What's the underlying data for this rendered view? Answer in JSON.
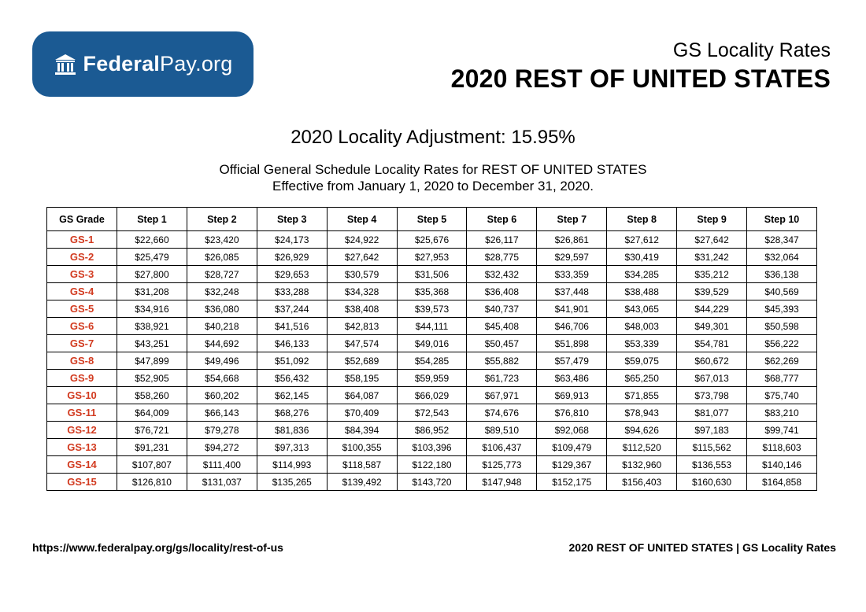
{
  "logo": {
    "brand_bold": "Federal",
    "brand_rest": "Pay.org",
    "icon": "building-columns-icon"
  },
  "header": {
    "subtitle": "GS Locality Rates",
    "title": "2020 REST OF UNITED STATES"
  },
  "adjustment": "2020 Locality Adjustment: 15.95%",
  "description": {
    "line1": "Official General Schedule Locality Rates for REST OF UNITED STATES",
    "line2": "Effective from January 1, 2020 to December 31, 2020."
  },
  "table": {
    "headers": [
      "GS Grade",
      "Step 1",
      "Step 2",
      "Step 3",
      "Step 4",
      "Step 5",
      "Step 6",
      "Step 7",
      "Step 8",
      "Step 9",
      "Step 10"
    ],
    "rows": [
      [
        "GS-1",
        "$22,660",
        "$23,420",
        "$24,173",
        "$24,922",
        "$25,676",
        "$26,117",
        "$26,861",
        "$27,612",
        "$27,642",
        "$28,347"
      ],
      [
        "GS-2",
        "$25,479",
        "$26,085",
        "$26,929",
        "$27,642",
        "$27,953",
        "$28,775",
        "$29,597",
        "$30,419",
        "$31,242",
        "$32,064"
      ],
      [
        "GS-3",
        "$27,800",
        "$28,727",
        "$29,653",
        "$30,579",
        "$31,506",
        "$32,432",
        "$33,359",
        "$34,285",
        "$35,212",
        "$36,138"
      ],
      [
        "GS-4",
        "$31,208",
        "$32,248",
        "$33,288",
        "$34,328",
        "$35,368",
        "$36,408",
        "$37,448",
        "$38,488",
        "$39,529",
        "$40,569"
      ],
      [
        "GS-5",
        "$34,916",
        "$36,080",
        "$37,244",
        "$38,408",
        "$39,573",
        "$40,737",
        "$41,901",
        "$43,065",
        "$44,229",
        "$45,393"
      ],
      [
        "GS-6",
        "$38,921",
        "$40,218",
        "$41,516",
        "$42,813",
        "$44,111",
        "$45,408",
        "$46,706",
        "$48,003",
        "$49,301",
        "$50,598"
      ],
      [
        "GS-7",
        "$43,251",
        "$44,692",
        "$46,133",
        "$47,574",
        "$49,016",
        "$50,457",
        "$51,898",
        "$53,339",
        "$54,781",
        "$56,222"
      ],
      [
        "GS-8",
        "$47,899",
        "$49,496",
        "$51,092",
        "$52,689",
        "$54,285",
        "$55,882",
        "$57,479",
        "$59,075",
        "$60,672",
        "$62,269"
      ],
      [
        "GS-9",
        "$52,905",
        "$54,668",
        "$56,432",
        "$58,195",
        "$59,959",
        "$61,723",
        "$63,486",
        "$65,250",
        "$67,013",
        "$68,777"
      ],
      [
        "GS-10",
        "$58,260",
        "$60,202",
        "$62,145",
        "$64,087",
        "$66,029",
        "$67,971",
        "$69,913",
        "$71,855",
        "$73,798",
        "$75,740"
      ],
      [
        "GS-11",
        "$64,009",
        "$66,143",
        "$68,276",
        "$70,409",
        "$72,543",
        "$74,676",
        "$76,810",
        "$78,943",
        "$81,077",
        "$83,210"
      ],
      [
        "GS-12",
        "$76,721",
        "$79,278",
        "$81,836",
        "$84,394",
        "$86,952",
        "$89,510",
        "$92,068",
        "$94,626",
        "$97,183",
        "$99,741"
      ],
      [
        "GS-13",
        "$91,231",
        "$94,272",
        "$97,313",
        "$100,355",
        "$103,396",
        "$106,437",
        "$109,479",
        "$112,520",
        "$115,562",
        "$118,603"
      ],
      [
        "GS-14",
        "$107,807",
        "$111,400",
        "$114,993",
        "$118,587",
        "$122,180",
        "$125,773",
        "$129,367",
        "$132,960",
        "$136,553",
        "$140,146"
      ],
      [
        "GS-15",
        "$126,810",
        "$131,037",
        "$135,265",
        "$139,492",
        "$143,720",
        "$147,948",
        "$152,175",
        "$156,403",
        "$160,630",
        "$164,858"
      ]
    ]
  },
  "footer": {
    "url": "https://www.federalpay.org/gs/locality/rest-of-us",
    "label": "2020 REST OF UNITED STATES | GS Locality Rates"
  },
  "colors": {
    "brand_blue": "#1b5a93",
    "grade_red": "#d23a1f"
  }
}
